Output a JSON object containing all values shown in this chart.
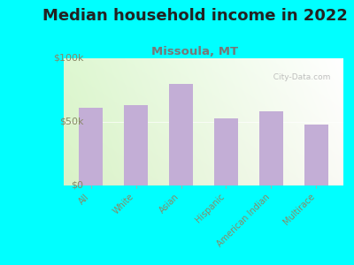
{
  "title": "Median household income in 2022",
  "subtitle": "Missoula, MT",
  "categories": [
    "All",
    "White",
    "Asian",
    "Hispanic",
    "American Indian",
    "Multirace"
  ],
  "values": [
    61000,
    63000,
    80000,
    53000,
    58000,
    48000
  ],
  "bar_color": "#c3aed6",
  "background_outer": "#00ffff",
  "ylim": [
    0,
    100000
  ],
  "ytick_labels": [
    "$0",
    "$50k",
    "$100k"
  ],
  "ytick_values": [
    0,
    50000,
    100000
  ],
  "title_fontsize": 13,
  "subtitle_fontsize": 9.5,
  "title_color": "#222222",
  "subtitle_color": "#777777",
  "tick_color": "#888866",
  "watermark": "  City-Data.com"
}
